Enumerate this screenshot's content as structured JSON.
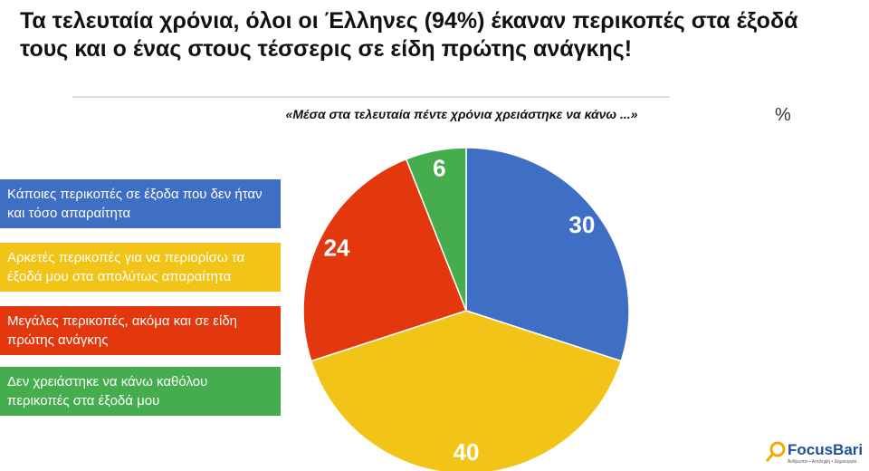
{
  "chart_data": {
    "type": "pie",
    "title": "Τα τελευταία χρόνια, όλοι οι Έλληνες (94%) έκαναν περικοπές στα έξοδά τους και ο ένας στους τέσσερις σε είδη πρώτης ανάγκης!",
    "subtitle": "«Μέσα στα τελευταία πέντε χρόνια χρειάστηκε να κάνω ...»",
    "unit_label": "%",
    "categories": [
      "Κάποιες περικοπές σε έξοδα που δεν ήταν και τόσο απαραίτητα",
      "Αρκετές περικοπές για να περιορίσω τα έξοδά μου στα απολύτως απαραίτητα",
      "Μεγάλες περικοπές, ακόμα και σε είδη πρώτης ανάγκης",
      "Δεν χρειάστηκε να κάνω καθόλου περικοπές στα έξοδά μου"
    ],
    "values": [
      30,
      40,
      24,
      6
    ],
    "colors": [
      "#3e6fc4",
      "#f2c417",
      "#e3380e",
      "#46ad4f"
    ],
    "logo": "FocusBari",
    "logo_tagline": "Άνθρωποι • Αντίληψη • Δημιουργία"
  }
}
